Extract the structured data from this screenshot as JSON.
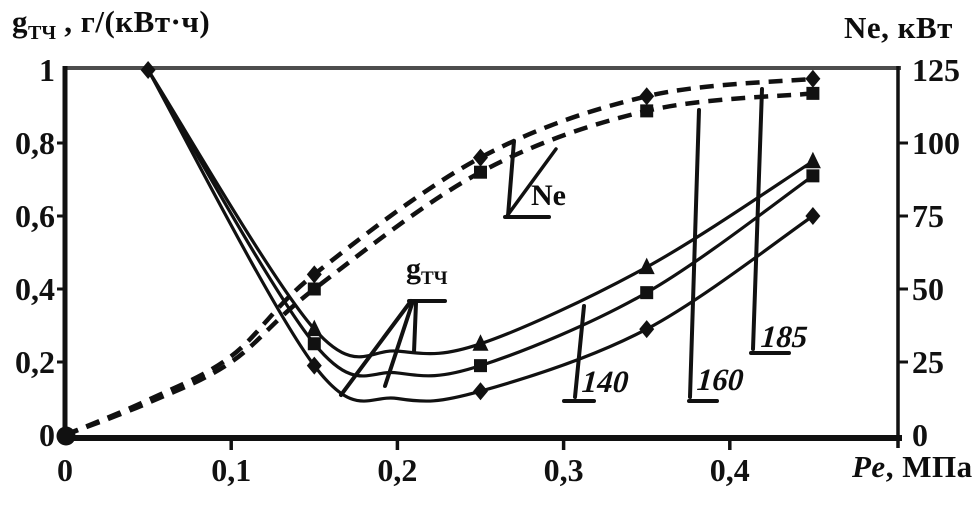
{
  "titles": {
    "left_axis_main": "g",
    "left_axis_sub": "ТЧ",
    "left_axis_rest": " , г/(кВт·ч)",
    "right_axis": "Ne, кВт",
    "x_axis_italic": "Pe",
    "x_axis_rest": ", МПа"
  },
  "annotations": {
    "gtch": {
      "main": "g",
      "sub": "ТЧ"
    },
    "ne": {
      "label": "Ne"
    },
    "n140": {
      "label": "140"
    },
    "n160": {
      "label": "160"
    },
    "n185": {
      "label": "185"
    }
  },
  "chart_data": {
    "type": "line",
    "title": "",
    "x_axis": {
      "label": "Pe, МПа",
      "range": [
        0,
        0.5
      ],
      "ticks": [
        0,
        0.1,
        0.2,
        0.3,
        0.4
      ],
      "tick_labels": [
        "0",
        "0,1",
        "0,2",
        "0,3",
        "0,4"
      ]
    },
    "y_left": {
      "label": "g_ТЧ, г/(кВт·ч)",
      "range": [
        0,
        1
      ],
      "ticks": [
        0,
        0.2,
        0.4,
        0.6,
        0.8,
        1
      ],
      "tick_labels": [
        "0",
        "0,2",
        "0,4",
        "0,6",
        "0,8",
        "1"
      ]
    },
    "y_right": {
      "label": "Ne, кВт",
      "range": [
        0,
        125
      ],
      "ticks": [
        0,
        25,
        50,
        75,
        100,
        125
      ],
      "tick_labels": [
        "0",
        "25",
        "50",
        "75",
        "100",
        "125"
      ]
    },
    "grid": false,
    "legend": "in-plot leader-line annotations: g_ТЧ (solid curves), Ne (dashed curves), 140 / 160 / 185",
    "series": [
      {
        "id": "gtch-upper",
        "group": "g_ТЧ",
        "axis": "left",
        "style": "solid",
        "marker": "triangle",
        "points": [
          [
            0.05,
            1.0
          ],
          [
            0.15,
            0.29
          ],
          [
            0.2,
            0.23
          ],
          [
            0.25,
            0.25
          ],
          [
            0.35,
            0.46
          ],
          [
            0.45,
            0.75
          ]
        ],
        "marker_points": [
          [
            0.15,
            0.29
          ],
          [
            0.25,
            0.25
          ],
          [
            0.35,
            0.46
          ],
          [
            0.45,
            0.75
          ]
        ]
      },
      {
        "id": "gtch-middle",
        "group": "g_ТЧ",
        "axis": "left",
        "style": "solid",
        "marker": "square",
        "points": [
          [
            0.05,
            1.0
          ],
          [
            0.15,
            0.25
          ],
          [
            0.2,
            0.17
          ],
          [
            0.25,
            0.19
          ],
          [
            0.35,
            0.39
          ],
          [
            0.45,
            0.71
          ]
        ],
        "marker_points": [
          [
            0.15,
            0.25
          ],
          [
            0.25,
            0.19
          ],
          [
            0.35,
            0.39
          ],
          [
            0.45,
            0.71
          ]
        ]
      },
      {
        "id": "gtch-lower",
        "group": "g_ТЧ",
        "axis": "left",
        "style": "solid",
        "marker": "diamond",
        "points": [
          [
            0.05,
            1.0
          ],
          [
            0.15,
            0.19
          ],
          [
            0.2,
            0.1
          ],
          [
            0.25,
            0.12
          ],
          [
            0.35,
            0.29
          ],
          [
            0.45,
            0.6
          ]
        ],
        "marker_points": [
          [
            0.05,
            1.0
          ],
          [
            0.15,
            0.19
          ],
          [
            0.25,
            0.12
          ],
          [
            0.35,
            0.29
          ],
          [
            0.45,
            0.6
          ]
        ]
      },
      {
        "id": "ne-upper",
        "group": "Ne",
        "axis": "right",
        "style": "dashed",
        "marker": "diamond",
        "points": [
          [
            0,
            0
          ],
          [
            0.05,
            12
          ],
          [
            0.1,
            27
          ],
          [
            0.15,
            55
          ],
          [
            0.25,
            95
          ],
          [
            0.35,
            116
          ],
          [
            0.45,
            122
          ]
        ],
        "marker_points": [
          [
            0.15,
            55
          ],
          [
            0.25,
            95
          ],
          [
            0.35,
            116
          ],
          [
            0.45,
            122
          ]
        ]
      },
      {
        "id": "ne-lower",
        "group": "Ne",
        "axis": "right",
        "style": "dashed",
        "marker": "square",
        "points": [
          [
            0,
            0
          ],
          [
            0.05,
            11
          ],
          [
            0.1,
            25
          ],
          [
            0.15,
            50
          ],
          [
            0.25,
            90
          ],
          [
            0.35,
            111
          ],
          [
            0.45,
            117
          ]
        ],
        "marker_points": [
          [
            0.15,
            50
          ],
          [
            0.25,
            90
          ],
          [
            0.35,
            111
          ],
          [
            0.45,
            117
          ]
        ]
      }
    ],
    "origin_marker": {
      "x": 0,
      "y": 0,
      "shape": "dot"
    },
    "leader_lines": [
      {
        "name": "gtch-underline",
        "w": 4,
        "pts": [
          [
            409,
            301
          ],
          [
            445,
            301
          ]
        ]
      },
      {
        "name": "gtch-leader-1",
        "w": 4,
        "pts": [
          [
            411,
            301
          ],
          [
            341,
            395
          ]
        ]
      },
      {
        "name": "gtch-leader-2",
        "w": 4,
        "pts": [
          [
            413,
            301
          ],
          [
            385,
            386
          ]
        ]
      },
      {
        "name": "gtch-leader-3",
        "w": 4,
        "pts": [
          [
            416,
            303
          ],
          [
            414,
            352
          ]
        ]
      },
      {
        "name": "ne-leader-1",
        "w": 4,
        "pts": [
          [
            508,
            216
          ],
          [
            514,
            141
          ]
        ]
      },
      {
        "name": "ne-leader-2",
        "w": 3.5,
        "pts": [
          [
            507,
            216
          ],
          [
            556,
            149
          ]
        ]
      },
      {
        "name": "ne-foot",
        "w": 4,
        "pts": [
          [
            505,
            217
          ],
          [
            549,
            217
          ]
        ]
      },
      {
        "name": "l140",
        "w": 4,
        "pts": [
          [
            584,
            306
          ],
          [
            575,
            397
          ]
        ]
      },
      {
        "name": "l140-foot",
        "w": 4,
        "pts": [
          [
            564,
            401
          ],
          [
            594,
            401
          ]
        ]
      },
      {
        "name": "l160",
        "w": 4,
        "pts": [
          [
            699,
            110
          ],
          [
            690,
            397
          ]
        ]
      },
      {
        "name": "l160-foot",
        "w": 4,
        "pts": [
          [
            689,
            401
          ],
          [
            717,
            401
          ]
        ]
      },
      {
        "name": "l185",
        "w": 4,
        "pts": [
          [
            762,
            89
          ],
          [
            753,
            349
          ]
        ]
      },
      {
        "name": "l185-foot",
        "w": 4,
        "pts": [
          [
            751,
            353
          ],
          [
            789,
            353
          ]
        ]
      }
    ],
    "colors": {
      "ink": "#111111",
      "frame_top": "#4d4d4d",
      "background": "#ffffff"
    }
  }
}
